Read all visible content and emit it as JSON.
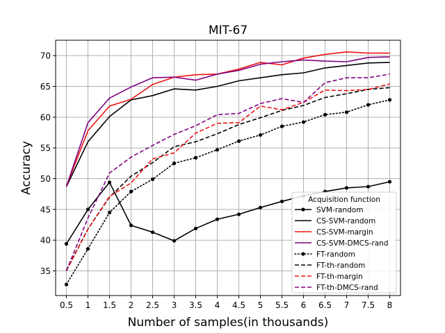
{
  "chart_data": {
    "type": "line",
    "title": "MIT-67",
    "xlabel": "Number of samples(in thousands)",
    "ylabel": "Accuracy",
    "xlim": [
      0.25,
      8.25
    ],
    "ylim": [
      31,
      72.5
    ],
    "x": [
      0.5,
      1,
      1.5,
      2,
      2.5,
      3,
      3.5,
      4,
      4.5,
      5,
      5.5,
      6,
      6.5,
      7,
      7.5,
      8
    ],
    "x_tick_labels": [
      "0.5",
      "1",
      "1.5",
      "2",
      "2.5",
      "3",
      "3.5",
      "4",
      "4.5",
      "5",
      "5.5",
      "6",
      "6.5",
      "7",
      "7.5",
      "8"
    ],
    "y_ticks": [
      35,
      40,
      45,
      50,
      55,
      60,
      65,
      70
    ],
    "y_tick_labels": [
      "35",
      "40",
      "45",
      "50",
      "55",
      "60",
      "65",
      "70"
    ],
    "grid": true,
    "legend": {
      "title": "Acquisition function",
      "position": "bottom-right"
    },
    "series": [
      {
        "name": "SVM-random",
        "color": "#000000",
        "dash": "solid",
        "marker": "dot",
        "values": [
          39.4,
          45.0,
          49.4,
          42.4,
          41.3,
          39.9,
          41.9,
          43.4,
          44.2,
          45.3,
          46.3,
          47.2,
          47.9,
          48.5,
          48.7,
          49.5
        ]
      },
      {
        "name": "CS-SVM-random",
        "color": "#000000",
        "dash": "solid",
        "marker": "none",
        "values": [
          48.7,
          56.0,
          60.1,
          62.8,
          63.5,
          64.6,
          64.4,
          65.0,
          65.9,
          66.4,
          66.9,
          67.2,
          68.0,
          68.4,
          68.8,
          68.9
        ]
      },
      {
        "name": "CS-SVM-margin",
        "color": "#ee1111",
        "dash": "solid",
        "marker": "none",
        "values": [
          48.8,
          57.8,
          61.8,
          62.9,
          65.3,
          66.5,
          66.9,
          67.0,
          67.8,
          68.9,
          68.5,
          69.6,
          70.2,
          70.6,
          70.4,
          70.4
        ]
      },
      {
        "name": "CS-SVM-DMCS-rand",
        "color": "#800080",
        "dash": "solid",
        "marker": "none",
        "values": [
          48.7,
          59.1,
          63.1,
          64.9,
          66.4,
          66.5,
          66.0,
          67.0,
          67.6,
          68.6,
          69.0,
          69.3,
          69.1,
          69.0,
          69.7,
          69.8
        ]
      },
      {
        "name": "FT-random",
        "color": "#000000",
        "dash": "dotted",
        "marker": "dot",
        "values": [
          32.8,
          38.6,
          44.5,
          47.9,
          49.9,
          52.5,
          53.4,
          54.7,
          56.1,
          57.1,
          58.5,
          59.2,
          60.4,
          60.8,
          62.0,
          62.8
        ]
      },
      {
        "name": "FT-th-random",
        "color": "#000000",
        "dash": "dashed",
        "marker": "none",
        "values": [
          35.1,
          41.8,
          47.0,
          50.4,
          52.6,
          55.2,
          56.0,
          57.3,
          58.8,
          59.9,
          61.1,
          61.9,
          63.2,
          63.8,
          64.5,
          64.8
        ]
      },
      {
        "name": "FT-th-margin",
        "color": "#ee1111",
        "dash": "dashed",
        "marker": "none",
        "values": [
          35.0,
          41.8,
          47.1,
          49.3,
          53.2,
          54.2,
          57.4,
          59.0,
          59.1,
          61.8,
          61.2,
          62.4,
          64.4,
          64.3,
          64.5,
          65.4
        ]
      },
      {
        "name": "FT-th-DMCS-rand",
        "color": "#800080",
        "dash": "dashed",
        "marker": "none",
        "values": [
          35.0,
          43.6,
          50.9,
          53.5,
          55.4,
          57.2,
          58.6,
          60.4,
          60.6,
          62.2,
          63.0,
          62.4,
          65.6,
          66.4,
          66.4,
          67.0
        ]
      }
    ]
  }
}
